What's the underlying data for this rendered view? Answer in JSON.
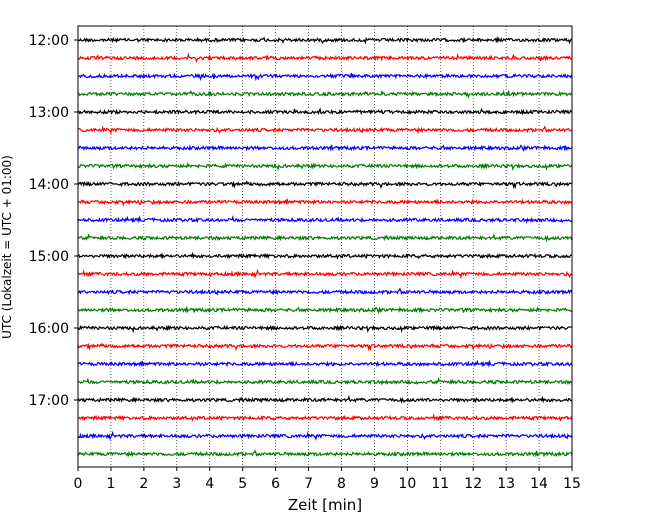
{
  "chart_data": {
    "type": "line",
    "title": "",
    "xlabel": "Zeit  [min]",
    "ylabel": "UTC (Lokalzeit = UTC + 01:00)",
    "xlim": [
      0,
      15
    ],
    "x_ticks": [
      "0",
      "1",
      "2",
      "3",
      "4",
      "5",
      "6",
      "7",
      "8",
      "9",
      "10",
      "11",
      "12",
      "13",
      "14",
      "15"
    ],
    "y_ticks": [
      "12:00",
      "13:00",
      "14:00",
      "15:00",
      "16:00",
      "17:00"
    ],
    "grid": "vertical dotted lines at each minute",
    "trace_interval_minutes": 15,
    "trace_color_cycle": [
      "#000000",
      "#ff0000",
      "#0000ff",
      "#007f00"
    ],
    "series": [
      {
        "start": "12:00",
        "color": "#000000"
      },
      {
        "start": "12:15",
        "color": "#ff0000"
      },
      {
        "start": "12:30",
        "color": "#0000ff"
      },
      {
        "start": "12:45",
        "color": "#007f00"
      },
      {
        "start": "13:00",
        "color": "#000000"
      },
      {
        "start": "13:15",
        "color": "#ff0000"
      },
      {
        "start": "13:30",
        "color": "#0000ff"
      },
      {
        "start": "13:45",
        "color": "#007f00"
      },
      {
        "start": "14:00",
        "color": "#000000"
      },
      {
        "start": "14:15",
        "color": "#ff0000"
      },
      {
        "start": "14:30",
        "color": "#0000ff"
      },
      {
        "start": "14:45",
        "color": "#007f00"
      },
      {
        "start": "15:00",
        "color": "#000000"
      },
      {
        "start": "15:15",
        "color": "#ff0000"
      },
      {
        "start": "15:30",
        "color": "#0000ff"
      },
      {
        "start": "15:45",
        "color": "#007f00"
      },
      {
        "start": "16:00",
        "color": "#000000"
      },
      {
        "start": "16:15",
        "color": "#ff0000"
      },
      {
        "start": "16:30",
        "color": "#0000ff"
      },
      {
        "start": "16:45",
        "color": "#007f00"
      },
      {
        "start": "17:00",
        "color": "#000000"
      },
      {
        "start": "17:15",
        "color": "#ff0000"
      },
      {
        "start": "17:30",
        "color": "#0000ff"
      },
      {
        "start": "17:45",
        "color": "#007f00"
      }
    ]
  }
}
